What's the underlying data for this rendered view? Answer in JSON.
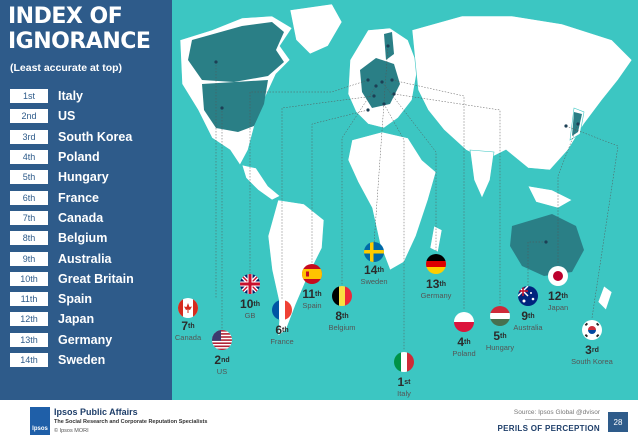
{
  "title_lines": [
    "INDEX OF",
    "IGNORANCE"
  ],
  "subtitle": "(Least accurate at top)",
  "ranking": [
    {
      "rank": "1st",
      "country": "Italy"
    },
    {
      "rank": "2nd",
      "country": "US"
    },
    {
      "rank": "3rd",
      "country": "South Korea"
    },
    {
      "rank": "4th",
      "country": "Poland"
    },
    {
      "rank": "5th",
      "country": "Hungary"
    },
    {
      "rank": "6th",
      "country": "France"
    },
    {
      "rank": "7th",
      "country": "Canada"
    },
    {
      "rank": "8th",
      "country": "Belgium"
    },
    {
      "rank": "9th",
      "country": "Australia"
    },
    {
      "rank": "10th",
      "country": "Great Britain"
    },
    {
      "rank": "11th",
      "country": "Spain"
    },
    {
      "rank": "12th",
      "country": "Japan"
    },
    {
      "rank": "13th",
      "country": "Germany"
    },
    {
      "rank": "14th",
      "country": "Sweden"
    }
  ],
  "map_labels": {
    "canada": {
      "num": "7",
      "suf": "th",
      "name": "Canada"
    },
    "us": {
      "num": "2",
      "suf": "nd",
      "name": "US"
    },
    "gb": {
      "num": "10",
      "suf": "th",
      "name": "GB"
    },
    "france": {
      "num": "6",
      "suf": "th",
      "name": "France"
    },
    "spain": {
      "num": "11",
      "suf": "th",
      "name": "Spain"
    },
    "belgium": {
      "num": "8",
      "suf": "th",
      "name": "Belgium"
    },
    "sweden": {
      "num": "14",
      "suf": "th",
      "name": "Sweden"
    },
    "italy": {
      "num": "1",
      "suf": "st",
      "name": "Italy"
    },
    "germany": {
      "num": "13",
      "suf": "th",
      "name": "Germany"
    },
    "poland": {
      "num": "4",
      "suf": "th",
      "name": "Poland"
    },
    "hungary": {
      "num": "5",
      "suf": "th",
      "name": "Hungary"
    },
    "australia": {
      "num": "9",
      "suf": "th",
      "name": "Australia"
    },
    "japan": {
      "num": "12",
      "suf": "th",
      "name": "Japan"
    },
    "south_korea": {
      "num": "3",
      "suf": "rd",
      "name": "South Korea"
    }
  },
  "colors": {
    "panel": "#2e5b8a",
    "ocean": "#3cc6c2",
    "land": "#ffffff",
    "highlight": "#2a7f86"
  },
  "footer": {
    "logo_text": "Ipsos",
    "brand": "Ipsos Public Affairs",
    "tagline": "The Social Research and Corporate Reputation Specialists",
    "copyright": "© Ipsos MORI",
    "source": "Source: Ipsos Global @dvisor",
    "section": "PERILS OF PERCEPTION",
    "page": "28"
  }
}
